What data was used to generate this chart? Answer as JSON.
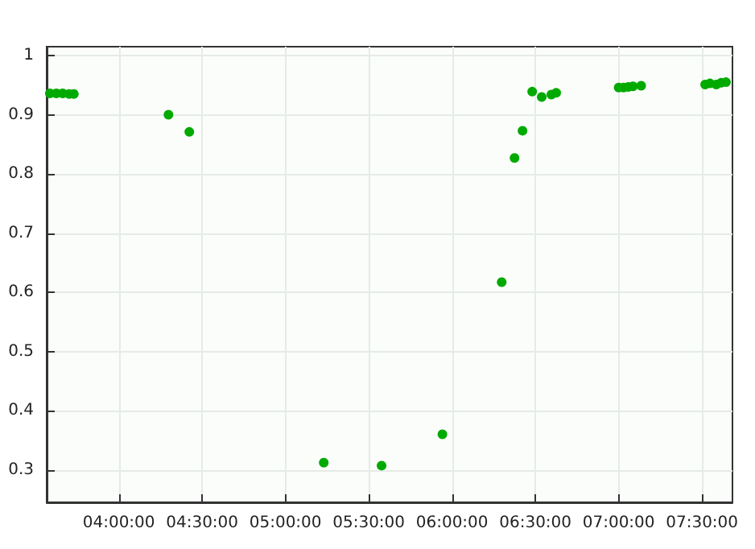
{
  "chart_data": {
    "type": "scatter",
    "marker": "circle",
    "grid": true,
    "xlim": [
      3.567,
      7.683
    ],
    "xticks": [
      {
        "value": 4,
        "label": "04:00:00"
      },
      {
        "value": 4.5,
        "label": "04:30:00"
      },
      {
        "value": 5,
        "label": "05:00:00"
      },
      {
        "value": 5.5,
        "label": "05:30:00"
      },
      {
        "value": 6,
        "label": "06:00:00"
      },
      {
        "value": 6.5,
        "label": "06:30:00"
      },
      {
        "value": 7,
        "label": "07:00:00"
      },
      {
        "value": 7.5,
        "label": "07:30:00"
      }
    ],
    "ylim": [
      0.245,
      1.015
    ],
    "yticks": [
      0.3,
      0.4,
      0.5,
      0.6,
      0.7,
      0.8,
      0.9,
      1
    ],
    "series": [
      {
        "color": "#00aa00",
        "x": [
          3.586,
          3.625,
          3.663,
          3.702,
          3.73,
          4.298,
          4.423,
          5.23,
          5.577,
          5.942,
          6.298,
          6.375,
          6.423,
          6.481,
          6.538,
          6.596,
          6.625,
          7.0,
          7.029,
          7.058,
          7.086,
          7.135,
          7.519,
          7.548,
          7.586,
          7.615,
          7.644
        ],
        "values": [
          0.936,
          0.936,
          0.936,
          0.935,
          0.935,
          0.9,
          0.871,
          0.312,
          0.307,
          0.36,
          0.617,
          0.827,
          0.873,
          0.939,
          0.93,
          0.934,
          0.937,
          0.946,
          0.946,
          0.947,
          0.948,
          0.949,
          0.951,
          0.953,
          0.951,
          0.954,
          0.955
        ]
      }
    ]
  }
}
